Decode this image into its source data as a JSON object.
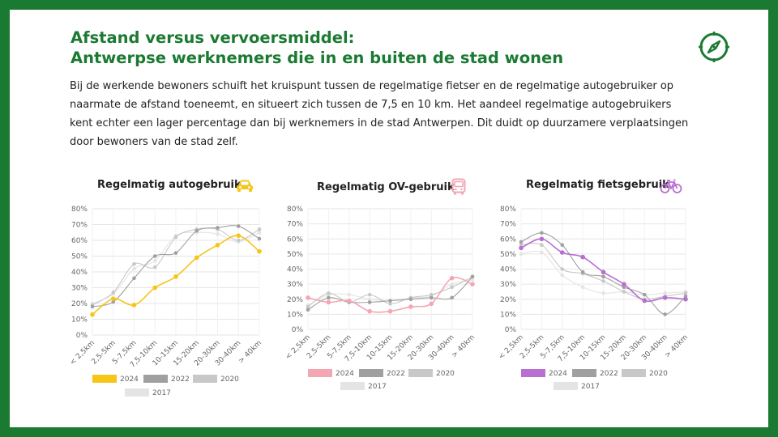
{
  "slide": {
    "title_line1": "Afstand versus vervoersmiddel:",
    "title_line2": "Antwerpse werknemers die in en buiten de stad wonen",
    "intro": "Bij de werkende bewoners schuift het kruispunt tussen de regelmatige fietser en de regelmatige autogebruiker op naarmate de afstand toeneemt, en situeert zich tussen de 7,5 en 10 km. Het aandeel regelmatige autogebruikers kent echter een lager percentage dan bij werknemers in de stad Antwerpen. Dit duidt op duurzamere verplaatsingen door bewoners van de stad zelf.",
    "compass_icon": "compass-icon",
    "brand_color": "#1b7a32"
  },
  "chart_data": [
    {
      "type": "line",
      "title": "Regelmatig autogebruik",
      "icon": "car-icon",
      "icon_color": "#f5c518",
      "categories": [
        "< 2,5km",
        "2,5-5km",
        "5-7,5km",
        "7,5-10km",
        "10-15km",
        "15-20km",
        "20-30km",
        "30-40km",
        "> 40km"
      ],
      "ylim": [
        0,
        80
      ],
      "yticks": [
        "0%",
        "10%",
        "20%",
        "30%",
        "40%",
        "50%",
        "60%",
        "70%",
        "80%"
      ],
      "series": [
        {
          "name": "2024",
          "color": "#f5c518",
          "values": [
            13,
            23,
            19,
            30,
            37,
            49,
            57,
            63,
            53
          ]
        },
        {
          "name": "2022",
          "color": "#a0a0a0",
          "values": [
            18,
            21,
            36,
            50,
            52,
            66,
            68,
            69,
            61
          ]
        },
        {
          "name": "2020",
          "color": "#c8c8c8",
          "values": [
            19,
            27,
            45,
            43,
            62,
            67,
            67,
            60,
            67
          ]
        },
        {
          "name": "2017",
          "color": "#e4e4e4",
          "values": [
            20,
            26,
            42,
            47,
            63,
            65,
            64,
            59,
            65
          ]
        }
      ]
    },
    {
      "type": "line",
      "title": "Regelmatig OV-gebruik",
      "icon": "bus-icon",
      "icon_color": "#f4a6b4",
      "categories": [
        "< 2,5km",
        "2,5-5km",
        "5-7,5km",
        "7,5-10km",
        "10-15km",
        "15-20km",
        "20-30km",
        "30-40km",
        "> 40km"
      ],
      "ylim": [
        0,
        80
      ],
      "yticks": [
        "0%",
        "10%",
        "20%",
        "30%",
        "40%",
        "50%",
        "60%",
        "70%",
        "80%"
      ],
      "series": [
        {
          "name": "2024",
          "color": "#f4a6b4",
          "values": [
            21,
            18,
            19,
            12,
            12,
            15,
            17,
            34,
            30
          ]
        },
        {
          "name": "2022",
          "color": "#a0a0a0",
          "values": [
            13,
            21,
            18,
            18,
            19,
            20,
            21,
            21,
            35
          ]
        },
        {
          "name": "2020",
          "color": "#c8c8c8",
          "values": [
            15,
            24,
            18,
            23,
            17,
            21,
            23,
            28,
            35
          ]
        },
        {
          "name": "2017",
          "color": "#e4e4e4",
          "values": [
            16,
            23,
            23,
            20,
            19,
            21,
            22,
            30,
            33
          ]
        }
      ]
    },
    {
      "type": "line",
      "title": "Regelmatig fietsgebruik",
      "icon": "bicycle-icon",
      "icon_color": "#b86fd1",
      "categories": [
        "< 2,5km",
        "2,5-5km",
        "5-7,5km",
        "7,5-10km",
        "10-15km",
        "15-20km",
        "20-30km",
        "30-40km",
        "> 40km"
      ],
      "ylim": [
        0,
        80
      ],
      "yticks": [
        "0%",
        "10%",
        "20%",
        "30%",
        "40%",
        "50%",
        "60%",
        "70%",
        "80%"
      ],
      "series": [
        {
          "name": "2024",
          "color": "#b86fd1",
          "values": [
            54,
            60,
            51,
            48,
            38,
            30,
            19,
            21,
            20
          ]
        },
        {
          "name": "2022",
          "color": "#a0a0a0",
          "values": [
            58,
            64,
            56,
            38,
            35,
            28,
            23,
            10,
            22
          ]
        },
        {
          "name": "2020",
          "color": "#c8c8c8",
          "values": [
            56,
            56,
            40,
            37,
            32,
            25,
            20,
            22,
            24
          ]
        },
        {
          "name": "2017",
          "color": "#e4e4e4",
          "values": [
            50,
            51,
            36,
            28,
            24,
            25,
            23,
            24,
            25
          ]
        }
      ]
    }
  ]
}
